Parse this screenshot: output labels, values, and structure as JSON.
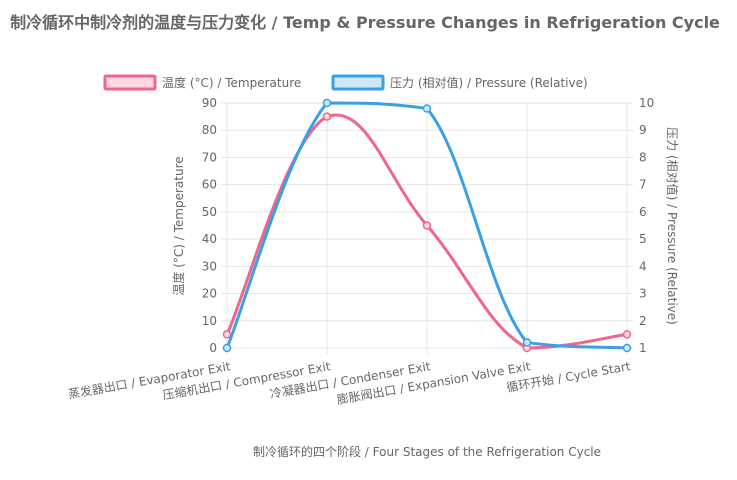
{
  "chart_data": {
    "type": "line",
    "title": "制冷循环中制冷剂的温度与压力变化 / Temp & Pressure Changes in Refrigeration Cycle",
    "categories": [
      "蒸发器出口 / Evaporator Exit",
      "压缩机出口 / Compressor Exit",
      "冷凝器出口 / Condenser Exit",
      "膨胀阀出口 / Expansion Valve Exit",
      "循环开始 / Cycle Start"
    ],
    "xlabel": "制冷循环的四个阶段 / Four Stages of the Refrigeration Cycle",
    "y_left": {
      "label": "温度 (°C) / Temperature",
      "min": 0,
      "max": 90,
      "step": 10,
      "ticks": [
        "0",
        "10",
        "20",
        "30",
        "40",
        "50",
        "60",
        "70",
        "80",
        "90"
      ]
    },
    "y_right": {
      "label": "压力 (相对值) / Pressure (Relative)",
      "min": 1,
      "max": 10,
      "step": 1,
      "ticks": [
        "1",
        "2",
        "3",
        "4",
        "5",
        "6",
        "7",
        "8",
        "9",
        "10"
      ]
    },
    "series": [
      {
        "name": "温度 (°C) / Temperature",
        "axis": "left",
        "color": "#f0658b",
        "fill": "#ffd9e2",
        "values": [
          5,
          85,
          45,
          0,
          5
        ]
      },
      {
        "name": "压力 (相对值) / Pressure (Relative)",
        "axis": "right",
        "color": "#3aa0e6",
        "fill": "#cfe8f9",
        "values": [
          1,
          10,
          9.8,
          1.2,
          1
        ]
      }
    ],
    "legend_position": "top"
  }
}
